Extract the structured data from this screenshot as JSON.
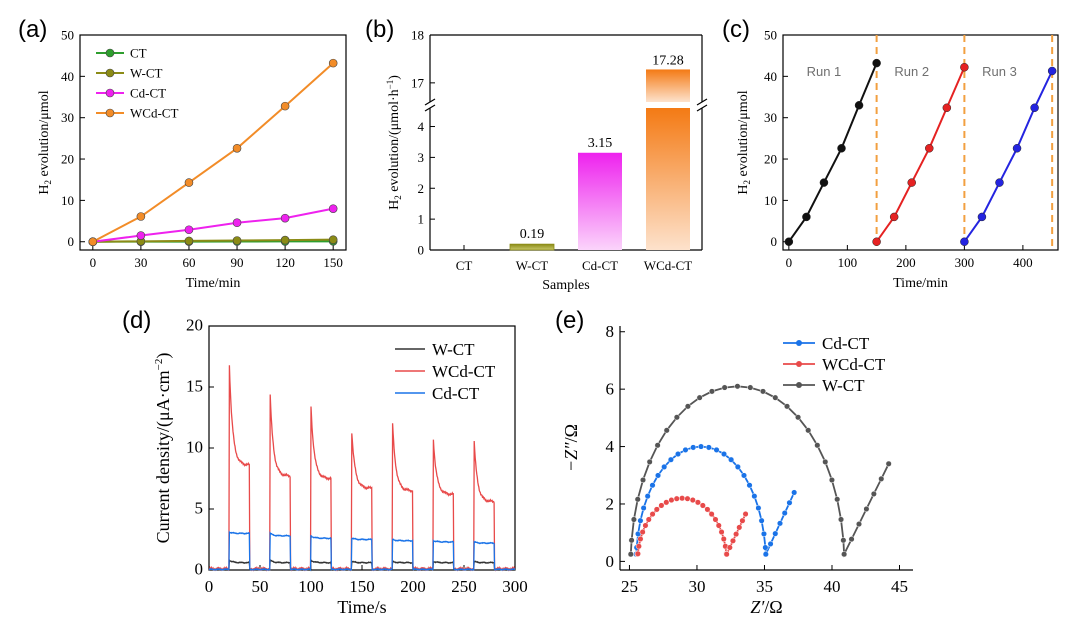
{
  "panels": {
    "a": "(a)",
    "b": "(b)",
    "c": "(c)",
    "d": "(d)",
    "e": "(e)"
  },
  "colors": {
    "CT": "#2e9e2e",
    "W-CT": "#8b8b16",
    "Cd-CT": "#ee22ee",
    "WCd-CT": "#f28c28",
    "run1": "#111111",
    "run2": "#e52222",
    "run3": "#2424e0",
    "dash": "#f2a040",
    "d_wct": "#333333",
    "d_wcdct": "#e84a4a",
    "d_cdct": "#1a73e8",
    "e_cdct": "#1a73e8",
    "e_wcdct": "#e84a4a",
    "e_wct": "#555555"
  },
  "chart_data": [
    {
      "id": "a",
      "type": "line",
      "title": "",
      "xlabel": "Time/min",
      "ylabel_main": "H",
      "ylabel_sub": "2",
      "ylabel_rest": " evolution/μmol",
      "xlim": [
        0,
        150
      ],
      "ylim": [
        -2,
        50
      ],
      "xticks": [
        0,
        30,
        60,
        90,
        120,
        150
      ],
      "yticks": [
        0,
        10,
        20,
        30,
        40,
        50
      ],
      "x": [
        0,
        30,
        60,
        90,
        120,
        150
      ],
      "legend_position": "top-left",
      "series": [
        {
          "name": "CT",
          "values": [
            0,
            0.02,
            0.04,
            0.06,
            0.08,
            0.1
          ]
        },
        {
          "name": "W-CT",
          "values": [
            0,
            0.1,
            0.2,
            0.3,
            0.4,
            0.5
          ]
        },
        {
          "name": "Cd-CT",
          "values": [
            0,
            1.5,
            2.9,
            4.6,
            5.7,
            8.0
          ]
        },
        {
          "name": "WCd-CT",
          "values": [
            0,
            6.1,
            14.3,
            22.6,
            32.8,
            43.2
          ]
        }
      ]
    },
    {
      "id": "b",
      "type": "bar",
      "xlabel": "Samples",
      "ylabel_main": "H",
      "ylabel_sub": "2",
      "ylabel_rest": " evolution/(μmol·h",
      "ylabel_sup": "−1",
      "ylabel_end": ")",
      "categories": [
        "CT",
        "W-CT",
        "Cd-CT",
        "WCd-CT"
      ],
      "values": [
        0,
        0.19,
        3.15,
        17.28
      ],
      "data_labels": [
        "",
        "0.19",
        "3.15",
        "17.28"
      ],
      "ylim_lower": [
        0,
        4.6
      ],
      "ylim_upper": [
        16.6,
        18
      ],
      "yticks_lower": [
        0,
        1,
        2,
        3,
        4
      ],
      "yticks_upper": [
        17,
        18
      ],
      "axis_break": true
    },
    {
      "id": "c",
      "type": "line",
      "xlabel": "Time/min",
      "ylabel_main": "H",
      "ylabel_sub": "2",
      "ylabel_rest": " evolution/μmol",
      "xlim": [
        -10,
        460
      ],
      "ylim": [
        -2,
        50
      ],
      "xticks": [
        0,
        100,
        200,
        300,
        400
      ],
      "yticks": [
        0,
        10,
        20,
        30,
        40,
        50
      ],
      "dashed_lines_x": [
        150,
        300,
        450
      ],
      "run_labels": [
        "Run 1",
        "Run 2",
        "Run 3"
      ],
      "series": [
        {
          "name": "Run 1",
          "x": [
            0,
            30,
            60,
            90,
            120,
            150
          ],
          "values": [
            0,
            6.0,
            14.3,
            22.6,
            33.0,
            43.2
          ]
        },
        {
          "name": "Run 2",
          "x": [
            150,
            180,
            210,
            240,
            270,
            300
          ],
          "values": [
            0,
            6.0,
            14.3,
            22.6,
            32.4,
            42.2
          ]
        },
        {
          "name": "Run 3",
          "x": [
            300,
            330,
            360,
            390,
            420,
            450
          ],
          "values": [
            0,
            6.0,
            14.3,
            22.6,
            32.4,
            41.3
          ]
        }
      ]
    },
    {
      "id": "d",
      "type": "line",
      "xlabel": "Time/s",
      "ylabel_main": "Current density/(μA·cm",
      "ylabel_sup": "−2",
      "ylabel_end": ")",
      "xlim": [
        0,
        300
      ],
      "ylim": [
        0,
        20
      ],
      "xticks": [
        0,
        50,
        100,
        150,
        200,
        250,
        300
      ],
      "yticks": [
        0,
        5,
        10,
        15,
        20
      ],
      "on_intervals": [
        [
          20,
          40
        ],
        [
          60,
          80
        ],
        [
          100,
          120
        ],
        [
          140,
          160
        ],
        [
          180,
          200
        ],
        [
          220,
          240
        ],
        [
          260,
          280
        ]
      ],
      "legend_position": "top-right",
      "series": [
        {
          "name": "W-CT",
          "peaks": [
            0.8,
            0.8,
            0.8,
            0.7,
            0.7,
            0.7,
            0.7
          ],
          "plateaus": [
            0.6,
            0.6,
            0.6,
            0.6,
            0.6,
            0.6,
            0.6
          ],
          "dark": 0.05
        },
        {
          "name": "WCd-CT",
          "peaks": [
            16.8,
            14.3,
            13.4,
            11.3,
            12.0,
            10.7,
            10.5
          ],
          "plateaus": [
            8.6,
            7.7,
            7.5,
            6.7,
            6.5,
            6.2,
            5.6
          ],
          "dark": 0.1
        },
        {
          "name": "Cd-CT",
          "peaks": [
            3.1,
            3.0,
            2.8,
            2.6,
            2.5,
            2.4,
            2.3
          ],
          "plateaus": [
            3.0,
            2.8,
            2.6,
            2.5,
            2.4,
            2.3,
            2.2
          ],
          "dark": 0.05
        }
      ]
    },
    {
      "id": "e",
      "type": "scatter",
      "xlabel_main": "Z′",
      "xlabel_unit": "/Ω",
      "ylabel_main": "−Z″",
      "ylabel_unit": "/Ω",
      "xlim": [
        24.3,
        46
      ],
      "ylim": [
        -0.3,
        8.2
      ],
      "xticks": [
        25,
        30,
        35,
        40,
        45
      ],
      "yticks": [
        0,
        2,
        4,
        6,
        8
      ],
      "legend_position": "top-right",
      "series": [
        {
          "name": "Cd-CT",
          "center": 30.3,
          "radius": 4.8,
          "height": 4.0,
          "tail_end": [
            37.2,
            2.4
          ]
        },
        {
          "name": "WCd-CT",
          "center": 28.9,
          "radius": 3.3,
          "height": 2.2,
          "tail_end": [
            33.6,
            1.65
          ]
        },
        {
          "name": "W-CT",
          "center": 33.0,
          "radius": 7.9,
          "height": 6.1,
          "tail_end": [
            44.2,
            3.4
          ]
        }
      ]
    }
  ]
}
